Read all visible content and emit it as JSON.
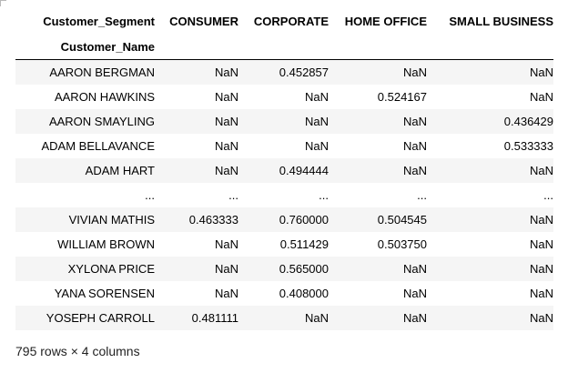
{
  "table": {
    "columns_name": "Customer_Segment",
    "index_name": "Customer_Name",
    "columns": [
      "CONSUMER",
      "CORPORATE",
      "HOME OFFICE",
      "SMALL BUSINESS"
    ],
    "rows": [
      {
        "name": "AARON BERGMAN",
        "values": [
          "NaN",
          "0.452857",
          "NaN",
          "NaN"
        ]
      },
      {
        "name": "AARON HAWKINS",
        "values": [
          "NaN",
          "NaN",
          "0.524167",
          "NaN"
        ]
      },
      {
        "name": "AARON SMAYLING",
        "values": [
          "NaN",
          "NaN",
          "NaN",
          "0.436429"
        ]
      },
      {
        "name": "ADAM BELLAVANCE",
        "values": [
          "NaN",
          "NaN",
          "NaN",
          "0.533333"
        ]
      },
      {
        "name": "ADAM HART",
        "values": [
          "NaN",
          "0.494444",
          "NaN",
          "NaN"
        ]
      },
      {
        "name": "...",
        "values": [
          "...",
          "...",
          "...",
          "..."
        ]
      },
      {
        "name": "VIVIAN MATHIS",
        "values": [
          "0.463333",
          "0.760000",
          "0.504545",
          "NaN"
        ]
      },
      {
        "name": "WILLIAM BROWN",
        "values": [
          "NaN",
          "0.511429",
          "0.503750",
          "NaN"
        ]
      },
      {
        "name": "XYLONA PRICE",
        "values": [
          "NaN",
          "0.565000",
          "NaN",
          "NaN"
        ]
      },
      {
        "name": "YANA SORENSEN",
        "values": [
          "NaN",
          "0.408000",
          "NaN",
          "NaN"
        ]
      },
      {
        "name": "YOSEPH CARROLL",
        "values": [
          "0.481111",
          "NaN",
          "NaN",
          "NaN"
        ]
      }
    ]
  },
  "footer": {
    "shape_text": "795 rows × 4 columns"
  },
  "colors": {
    "stripe": "#f5f5f5",
    "header_rule": "#000000"
  }
}
